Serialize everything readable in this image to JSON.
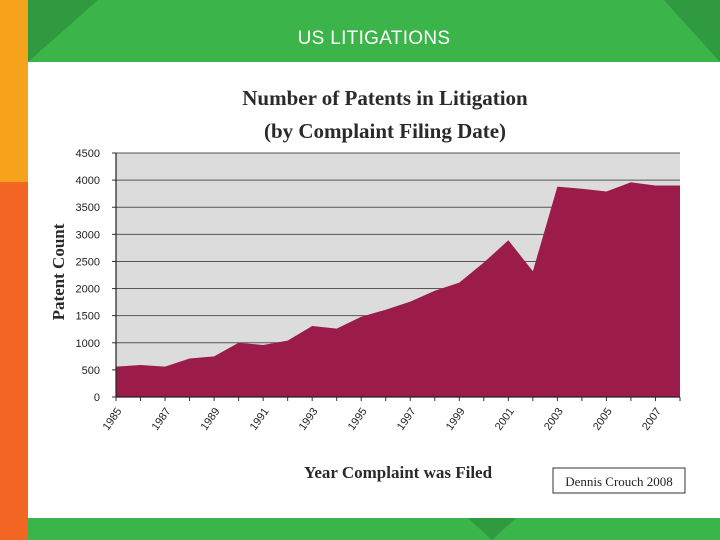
{
  "slide": {
    "title": "US LITIGATIONS"
  },
  "colors": {
    "area_fill": "#9b1b4b",
    "plot_bg": "#dcdcdc",
    "header_green": "#3bb54a",
    "left_bar_orange": "#f7a21b",
    "left_bar_red": "#f26522"
  },
  "chart_data": {
    "type": "area",
    "title": "Number of Patents in Litigation",
    "subtitle": "(by Complaint Filing Date)",
    "xlabel": "Year Complaint was Filed",
    "ylabel": "Patent Count",
    "ylim": [
      0,
      4500
    ],
    "yticks": [
      "0",
      "500",
      "1000",
      "1500",
      "2000",
      "2500",
      "3000",
      "3500",
      "4000",
      "4500"
    ],
    "xtick_labels": [
      "1985",
      "1987",
      "1989",
      "1991",
      "1993",
      "1995",
      "1997",
      "1999",
      "2001",
      "2003",
      "2005",
      "2007"
    ],
    "grid": true,
    "x": [
      1985,
      1986,
      1987,
      1988,
      1989,
      1990,
      1991,
      1992,
      1993,
      1994,
      1995,
      1996,
      1997,
      1998,
      1999,
      2000,
      2001,
      2002,
      2003,
      2004,
      2005,
      2006,
      2007,
      2008
    ],
    "values": [
      560,
      590,
      560,
      710,
      750,
      1000,
      960,
      1040,
      1310,
      1260,
      1480,
      1610,
      1760,
      1960,
      2110,
      2480,
      2890,
      2320,
      3880,
      3840,
      3790,
      3960,
      3900,
      3900
    ],
    "credit": "Dennis Crouch 2008"
  }
}
